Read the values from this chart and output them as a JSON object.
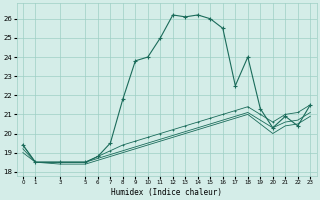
{
  "title": "",
  "xlabel": "Humidex (Indice chaleur)",
  "background_color": "#d4ede8",
  "grid_color": "#9ecfc5",
  "line_color": "#1a6b5a",
  "x_ticks": [
    0,
    1,
    3,
    5,
    6,
    7,
    8,
    9,
    10,
    11,
    12,
    13,
    14,
    15,
    16,
    17,
    18,
    19,
    20,
    21,
    22,
    23
  ],
  "y_ticks": [
    18,
    19,
    20,
    21,
    22,
    23,
    24,
    25,
    26
  ],
  "ylim": [
    17.8,
    26.8
  ],
  "xlim": [
    -0.5,
    23.5
  ],
  "series1_x": [
    0,
    1,
    3,
    5,
    6,
    7,
    8,
    9,
    10,
    11,
    12,
    13,
    14,
    15,
    16,
    17,
    18,
    19,
    20,
    21,
    22,
    23
  ],
  "series1_y": [
    19.4,
    18.5,
    18.5,
    18.5,
    18.8,
    19.5,
    21.8,
    23.8,
    24.0,
    25.0,
    26.2,
    26.1,
    26.2,
    26.0,
    25.5,
    22.5,
    24.0,
    21.3,
    20.3,
    20.9,
    20.4,
    21.5
  ],
  "series2_x": [
    0,
    1,
    3,
    5,
    6,
    7,
    8,
    9,
    10,
    11,
    12,
    13,
    14,
    15,
    16,
    17,
    18,
    19,
    20,
    21,
    22,
    23
  ],
  "series2_y": [
    19.4,
    18.5,
    18.5,
    18.5,
    18.8,
    19.1,
    19.4,
    19.6,
    19.8,
    20.0,
    20.2,
    20.4,
    20.6,
    20.8,
    21.0,
    21.2,
    21.4,
    21.0,
    20.6,
    21.0,
    21.1,
    21.5
  ],
  "series3_x": [
    0,
    1,
    3,
    5,
    6,
    7,
    8,
    9,
    10,
    11,
    12,
    13,
    14,
    15,
    16,
    17,
    18,
    19,
    20,
    21,
    22,
    23
  ],
  "series3_y": [
    19.2,
    18.5,
    18.5,
    18.5,
    18.7,
    18.9,
    19.1,
    19.3,
    19.5,
    19.7,
    19.9,
    20.1,
    20.3,
    20.5,
    20.7,
    20.9,
    21.1,
    20.7,
    20.3,
    20.6,
    20.7,
    21.1
  ],
  "series4_x": [
    0,
    1,
    3,
    5,
    6,
    7,
    8,
    9,
    10,
    11,
    12,
    13,
    14,
    15,
    16,
    17,
    18,
    19,
    20,
    21,
    22,
    23
  ],
  "series4_y": [
    19.0,
    18.5,
    18.4,
    18.4,
    18.6,
    18.8,
    19.0,
    19.2,
    19.4,
    19.6,
    19.8,
    20.0,
    20.2,
    20.4,
    20.6,
    20.8,
    21.0,
    20.5,
    20.0,
    20.4,
    20.5,
    20.9
  ]
}
